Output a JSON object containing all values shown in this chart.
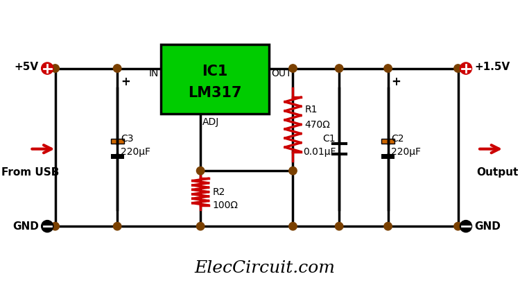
{
  "bg_color": "#ffffff",
  "line_color": "#000000",
  "wire_color": "#000000",
  "resistor_color": "#cc0000",
  "ic_fill": "#00cc00",
  "ic_text1": "IC1",
  "ic_text2": "LM317",
  "node_color": "#7a4000",
  "plus_color": "#cc0000",
  "minus_color": "#000000",
  "cap_color": "#cc6600",
  "cap_color2": "#000000",
  "arrow_color": "#cc0000",
  "title": "ElecCircuit.com",
  "title_fontsize": 18,
  "label_5v": "+5V",
  "label_15v": "+1.5V",
  "label_gnd1": "GND",
  "label_gnd2": "GND",
  "label_fromusb": "From USB",
  "label_output": "Output",
  "label_in": "IN",
  "label_out": "OUT",
  "label_adj": "ADJ",
  "label_r1": "R1",
  "label_r1val": "470Ω",
  "label_r2": "R2",
  "label_r2val": "100Ω",
  "label_c1": "C1",
  "label_c1val": "0.01μF",
  "label_c2": "C2",
  "label_c2val": "220μF",
  "label_c3": "C3",
  "label_c3val": "220μF"
}
